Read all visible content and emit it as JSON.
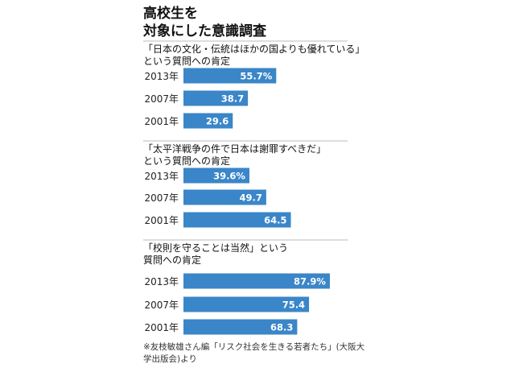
{
  "title_lines": [
    "高校生を",
    "対象にした意識調査"
  ],
  "chart_data": [
    {
      "type": "bar",
      "orientation": "horizontal",
      "title_lines": [
        "「日本の文化・伝統はほかの国よりも優れている」",
        "という質問への肯定"
      ],
      "categories": [
        "2013年",
        "2007年",
        "2001年"
      ],
      "values": [
        55.7,
        38.7,
        29.6
      ],
      "value_labels": [
        "55.7%",
        "38.7",
        "29.6"
      ],
      "unit": "%"
    },
    {
      "type": "bar",
      "orientation": "horizontal",
      "title_lines": [
        "「太平洋戦争の件で日本は謝罪すべきだ」",
        "という質問への肯定"
      ],
      "categories": [
        "2013年",
        "2007年",
        "2001年"
      ],
      "values": [
        39.6,
        49.7,
        64.5
      ],
      "value_labels": [
        "39.6%",
        "49.7",
        "64.5"
      ],
      "unit": "%"
    },
    {
      "type": "bar",
      "orientation": "horizontal",
      "title_lines": [
        "「校則を守ることは当然」という",
        "質問への肯定"
      ],
      "categories": [
        "2013年",
        "2007年",
        "2001年"
      ],
      "values": [
        87.9,
        75.4,
        68.3
      ],
      "value_labels": [
        "87.9%",
        "75.4",
        "68.3"
      ],
      "unit": "%"
    }
  ],
  "source_lines": [
    "※友枝敏雄さん編「リスク社会を生きる若者たち」(大阪大",
    "学出版会)より"
  ],
  "colors": {
    "bar": "#3a86c8",
    "bar_label": "#ffffff",
    "rule": "#bbbbbb"
  }
}
